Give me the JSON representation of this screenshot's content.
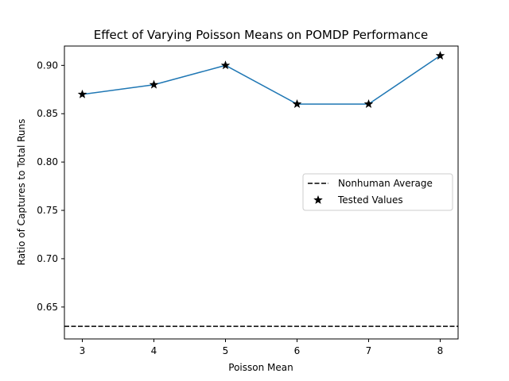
{
  "chart_data": {
    "type": "line",
    "title": "Effect of Varying Poisson Means on POMDP Performance",
    "xlabel": "Poisson Mean",
    "ylabel": "Ratio of Captures to Total Runs",
    "x": [
      3,
      4,
      5,
      6,
      7,
      8
    ],
    "xticks": [
      "3",
      "4",
      "5",
      "6",
      "7",
      "8"
    ],
    "xlim": [
      2.75,
      8.25
    ],
    "ylim": [
      0.617,
      0.92
    ],
    "yticks": [
      "0.65",
      "0.70",
      "0.75",
      "0.80",
      "0.85",
      "0.90"
    ],
    "ytick_values": [
      0.65,
      0.7,
      0.75,
      0.8,
      0.85,
      0.9
    ],
    "series": [
      {
        "values": [
          0.87,
          0.88,
          0.9,
          0.86,
          0.86,
          0.91
        ],
        "color": "#1f77b4",
        "style": "solid line"
      },
      {
        "name": "Tested Values",
        "values": [
          0.87,
          0.88,
          0.9,
          0.86,
          0.86,
          0.91
        ],
        "color": "#000000",
        "marker": "star"
      }
    ],
    "reference_lines": [
      {
        "name": "Nonhuman Average",
        "y": 0.63,
        "color": "#000000",
        "style": "dashed"
      }
    ],
    "legend": {
      "placement": "center-right",
      "entries": [
        "Nonhuman Average",
        "Tested Values"
      ]
    },
    "grid": false
  }
}
